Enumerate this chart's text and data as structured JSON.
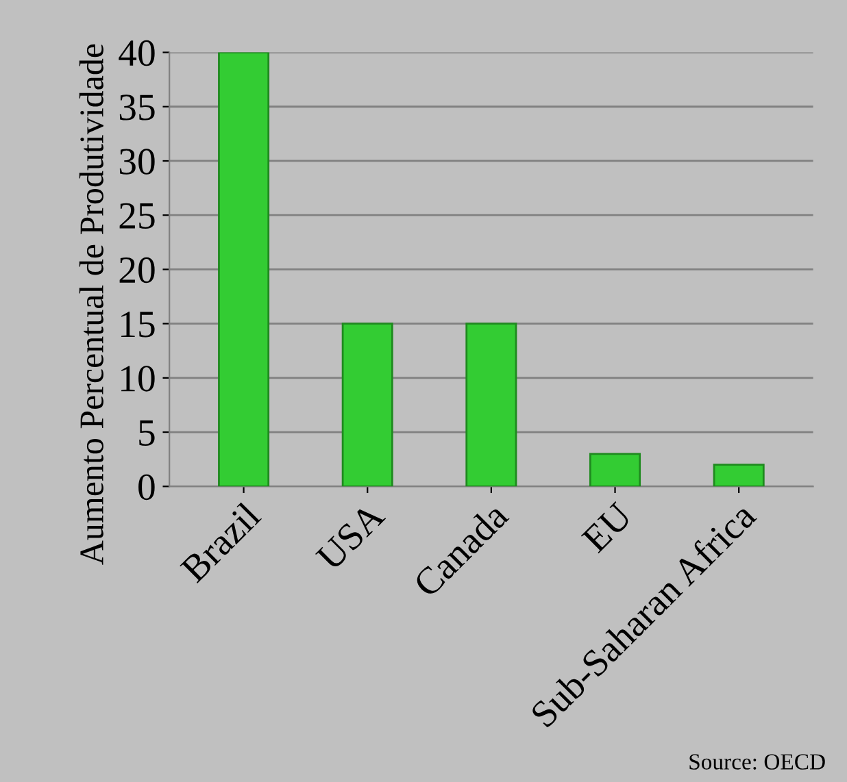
{
  "chart_data": {
    "type": "bar",
    "ylabel": "Aumento Percentual de Produtividade",
    "categories": [
      "Brazil",
      "USA",
      "Canada",
      "EU",
      "Sub-Saharan Africa"
    ],
    "values": [
      40,
      15,
      15,
      3,
      2
    ],
    "color": "#33cc33",
    "ylim": [
      0,
      40
    ],
    "yticks": [
      0,
      5,
      10,
      15,
      20,
      25,
      30,
      35,
      40
    ],
    "grid": "y",
    "annotations": [
      "Source: OECD"
    ]
  }
}
